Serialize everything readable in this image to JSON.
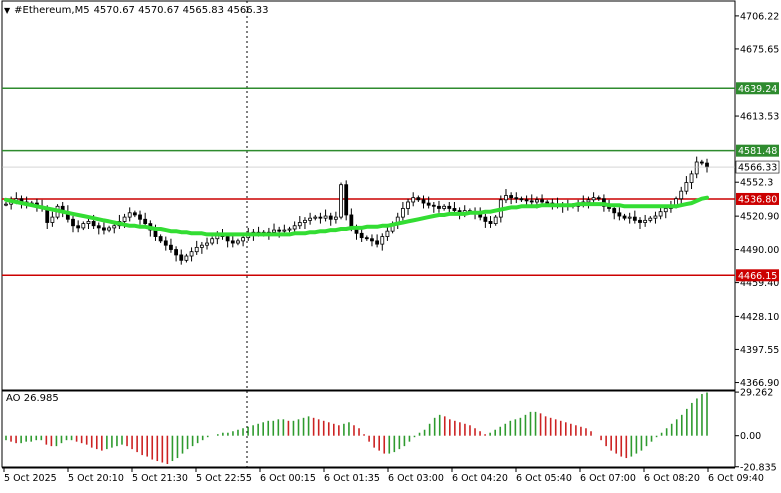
{
  "header": {
    "dropdown_icon": "triangle-down-icon",
    "symbol": "#Ethereum,M5",
    "ohlc": "4570.67 4570.67 4565.83 4566.33"
  },
  "colors": {
    "bull_candle": "#000000",
    "bear_candle": "#000000",
    "moving_average": "#33dd33",
    "resistance_line": "#2e8b2e",
    "support_line": "#cc0000",
    "ao_up": "#2e9a2e",
    "ao_down": "#cc2222",
    "grid": "#000000"
  },
  "chart_data": [
    {
      "type": "candlestick",
      "title": "#Ethereum,M5",
      "ylim": [
        4360,
        4720
      ],
      "y_ticks": [
        "4706.22",
        "4675.65",
        "4613.53",
        "4552.3",
        "4520.90",
        "4490.00",
        "4459.40",
        "4428.10",
        "4397.55",
        "4366.90"
      ],
      "x_ticks": [
        "5 Oct 2025",
        "5 Oct 20:10",
        "5 Oct 21:30",
        "5 Oct 22:55",
        "6 Oct 00:15",
        "6 Oct 01:35",
        "6 Oct 03:00",
        "6 Oct 04:20",
        "6 Oct 05:40",
        "6 Oct 07:00",
        "6 Oct 08:20",
        "6 Oct 09:40"
      ],
      "last_price": "4566.33",
      "horizontal_levels": [
        {
          "label": "4639.24",
          "value": 4639.24,
          "color": "#2e8b2e"
        },
        {
          "label": "4581.48",
          "value": 4581.48,
          "color": "#2e8b2e"
        },
        {
          "label": "4536.80",
          "value": 4536.8,
          "color": "#cc0000"
        },
        {
          "label": "4466.15",
          "value": 4466.15,
          "color": "#cc0000"
        }
      ],
      "close_series": [
        4532,
        4535,
        4537,
        4534,
        4532,
        4533,
        4530,
        4528,
        4515,
        4520,
        4530,
        4525,
        4518,
        4512,
        4510,
        4514,
        4516,
        4512,
        4510,
        4508,
        4510,
        4512,
        4516,
        4520,
        4524,
        4522,
        4518,
        4514,
        4508,
        4502,
        4498,
        4494,
        4490,
        4485,
        4480,
        4484,
        4488,
        4492,
        4494,
        4496,
        4500,
        4503,
        4502,
        4498,
        4496,
        4498,
        4501,
        4504,
        4506,
        4506,
        4504,
        4506,
        4508,
        4507,
        4508,
        4509,
        4512,
        4515,
        4517,
        4519,
        4520,
        4519,
        4521,
        4518,
        4520,
        4550,
        4522,
        4510,
        4505,
        4501,
        4500,
        4498,
        4495,
        4502,
        4507,
        4514,
        4520,
        4528,
        4534,
        4538,
        4536,
        4533,
        4531,
        4530,
        4528,
        4530,
        4528,
        4526,
        4524,
        4526,
        4525,
        4523,
        4520,
        4516,
        4514,
        4520,
        4536,
        4540,
        4538,
        4537,
        4536,
        4535,
        4534,
        4536,
        4534,
        4533,
        4532,
        4531,
        4530,
        4531,
        4530,
        4532,
        4534,
        4536,
        4538,
        4537,
        4530,
        4528,
        4524,
        4521,
        4519,
        4520,
        4517,
        4515,
        4517,
        4519,
        4521,
        4525,
        4528,
        4530,
        4537,
        4544,
        4552,
        4560,
        4571,
        4570,
        4566.33
      ],
      "ma_series": [
        4536,
        4535,
        4534,
        4533,
        4532,
        4531,
        4530,
        4529,
        4528,
        4527,
        4526,
        4525,
        4524,
        4523,
        4522,
        4521,
        4520,
        4519,
        4518,
        4517,
        4516,
        4515,
        4514,
        4513,
        4512,
        4512,
        4511,
        4511,
        4510,
        4509,
        4509,
        4508,
        4507,
        4507,
        4506,
        4506,
        4505,
        4505,
        4505,
        4504,
        4504,
        4504,
        4504,
        4504,
        4504,
        4504,
        4504,
        4504,
        4504,
        4504,
        4504,
        4504,
        4504,
        4504,
        4504,
        4504,
        4505,
        4505,
        4505,
        4506,
        4506,
        4507,
        4507,
        4508,
        4508,
        4509,
        4509,
        4510,
        4510,
        4510,
        4511,
        4511,
        4511,
        4512,
        4512,
        4513,
        4514,
        4515,
        4516,
        4517,
        4518,
        4519,
        4520,
        4521,
        4522,
        4522,
        4523,
        4523,
        4523,
        4523,
        4524,
        4524,
        4524,
        4525,
        4525,
        4526,
        4527,
        4528,
        4529,
        4529,
        4530,
        4530,
        4530,
        4530,
        4531,
        4531,
        4531,
        4531,
        4531,
        4531,
        4531,
        4532,
        4532,
        4532,
        4532,
        4532,
        4532,
        4531,
        4531,
        4531,
        4530,
        4530,
        4530,
        4530,
        4530,
        4530,
        4530,
        4530,
        4530,
        4530,
        4530,
        4531,
        4532,
        4533,
        4535,
        4537,
        4538
      ]
    },
    {
      "type": "bar",
      "title": "AO 26.985",
      "ylim": [
        -21,
        30
      ],
      "y_ticks": [
        "29.262",
        "0.00",
        "-20.835"
      ],
      "values": [
        -3,
        -4,
        -5,
        -5,
        -4,
        -4,
        -3,
        -3,
        -6,
        -7,
        -7,
        -5,
        -3,
        -3,
        -4,
        -5,
        -6,
        -8,
        -9,
        -10,
        -9,
        -8,
        -7,
        -6,
        -7,
        -9,
        -11,
        -13,
        -14,
        -16,
        -17,
        -18,
        -19,
        -17,
        -15,
        -12,
        -9,
        -7,
        -5,
        -3,
        -1,
        0,
        1,
        2,
        2,
        3,
        4,
        5,
        6,
        7,
        8,
        9,
        10,
        10,
        11,
        11,
        10,
        10,
        11,
        12,
        13,
        12,
        11,
        10,
        9,
        8,
        7,
        8,
        9,
        7,
        5,
        1,
        -4,
        -8,
        -10,
        -12,
        -12,
        -11,
        -9,
        -7,
        -4,
        -1,
        2,
        4,
        8,
        12,
        14,
        13,
        11,
        10,
        9,
        8,
        7,
        5,
        3,
        1,
        2,
        4,
        6,
        8,
        10,
        11,
        12,
        14,
        16,
        16,
        15,
        13,
        12,
        11,
        10,
        9,
        8,
        7,
        6,
        5,
        3,
        0,
        -3,
        -7,
        -10,
        -12,
        -14,
        -15,
        -14,
        -12,
        -10,
        -7,
        -4,
        -1,
        2,
        5,
        8,
        11,
        14,
        18,
        22,
        25,
        28,
        29
      ]
    }
  ]
}
